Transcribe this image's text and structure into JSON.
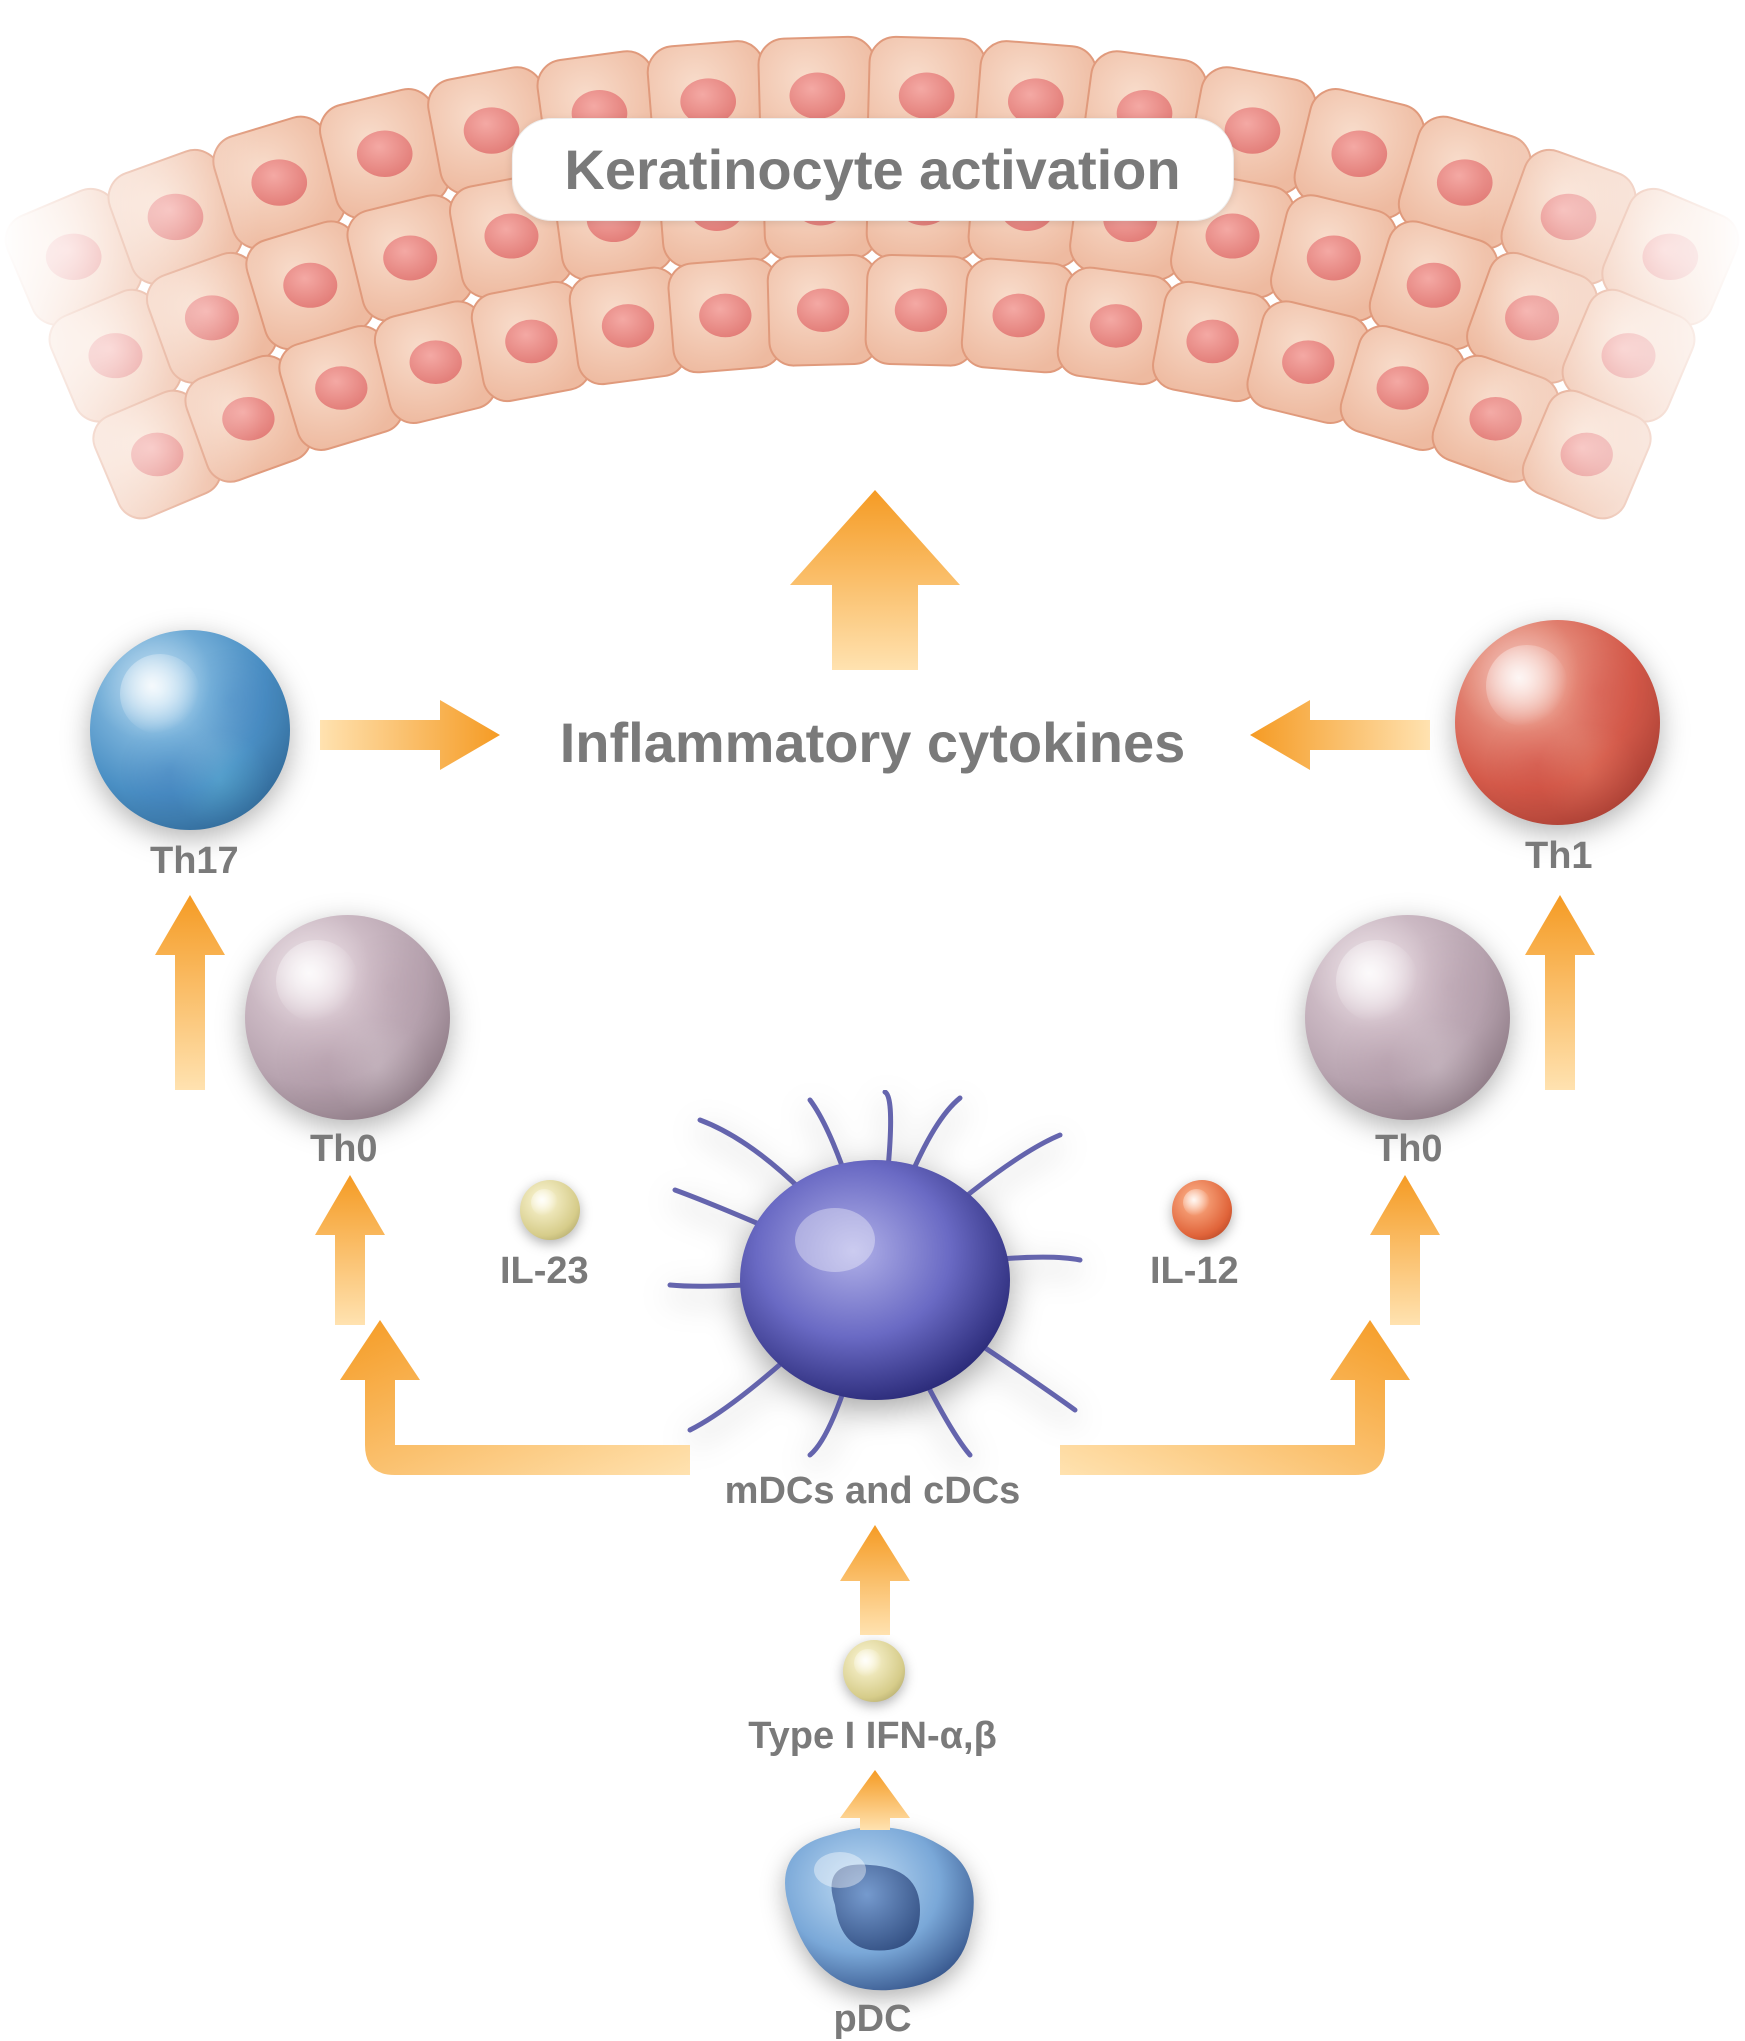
{
  "diagram": {
    "type": "flowchart",
    "background_color": "#ffffff",
    "arrow_gradient": [
      "#f59b24",
      "#ffe4b5"
    ],
    "label_color": "#7a7a7a",
    "title": {
      "text": "Keratinocyte activation",
      "fontsize": 56,
      "bg": "#ffffff",
      "radius": 40
    },
    "inflammatory_label": {
      "text": "Inflammatory cytokines",
      "fontsize": 56
    },
    "cells": {
      "th17": {
        "label": "Th17",
        "fontsize": 38,
        "color_core": "#2a6fa3",
        "color_light": "#90c6e8"
      },
      "th1": {
        "label": "Th1",
        "fontsize": 38,
        "color_core": "#b23a3a",
        "color_light": "#f09a8a"
      },
      "th0_l": {
        "label": "Th0",
        "fontsize": 38,
        "color_core": "#7d6f78",
        "color_light": "#d8c6d0"
      },
      "th0_r": {
        "label": "Th0",
        "fontsize": 38,
        "color_core": "#7d6f78",
        "color_light": "#d8c6d0"
      },
      "mdc": {
        "label": "mDCs and cDCs",
        "fontsize": 38,
        "color_core": "#3b3b8a",
        "color_light": "#8e8ed8"
      },
      "pdc": {
        "label": "pDC",
        "fontsize": 38,
        "color_core": "#4a74b0",
        "color_light": "#a6c6e8"
      }
    },
    "cytokines": {
      "il23": {
        "label": "IL-23",
        "fontsize": 38,
        "fill_inner": "#f5f0c0",
        "fill_outer": "#c9c080"
      },
      "il12": {
        "label": "IL-12",
        "fontsize": 38,
        "fill_inner": "#ff9a6a",
        "fill_outer": "#c94a2a"
      },
      "ifn": {
        "label": "Type I IFN-α,β",
        "fontsize": 38,
        "fill_inner": "#f5f0c0",
        "fill_outer": "#c9c080"
      }
    },
    "keratinocytes": {
      "cell_fill": "#f2c4ae",
      "cell_stroke": "#e09a7c",
      "nucleus_fill": "#ec8f8a",
      "fade_edges": true
    }
  }
}
